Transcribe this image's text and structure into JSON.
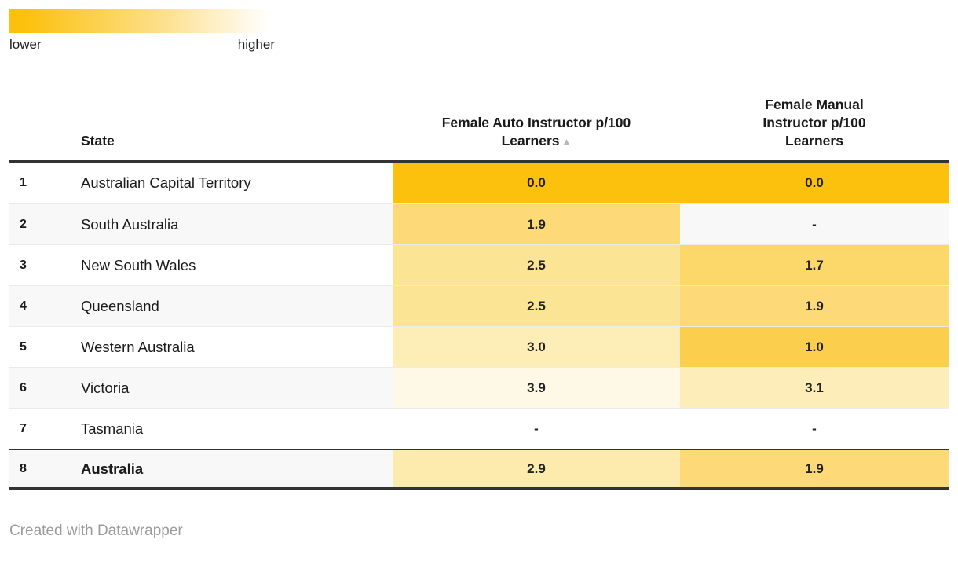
{
  "legend": {
    "lower_label": "lower",
    "higher_label": "higher",
    "gradient_start": "#FCC10D",
    "gradient_mid": "#FDDE85",
    "gradient_end": "#FFFFFF"
  },
  "table": {
    "header": {
      "state": "State",
      "auto": "Female Auto Instructor p/100 Learners",
      "manual": "Female Manual Instructor p/100 Learners",
      "sort_icon": "▲"
    },
    "rows": [
      {
        "rank": "1",
        "state": "Australian Capital Territory",
        "auto": "0.0",
        "manual": "0.0",
        "auto_color": "#FCC10D",
        "manual_color": "#FCC10D"
      },
      {
        "rank": "2",
        "state": "South Australia",
        "auto": "1.9",
        "manual": "-",
        "auto_color": "#FDDA77",
        "manual_color": null
      },
      {
        "rank": "3",
        "state": "New South Wales",
        "auto": "2.5",
        "manual": "1.7",
        "auto_color": "#FBE494",
        "manual_color": "#FCD76A"
      },
      {
        "rank": "4",
        "state": "Queensland",
        "auto": "2.5",
        "manual": "1.9",
        "auto_color": "#FBE494",
        "manual_color": "#FDDA77"
      },
      {
        "rank": "5",
        "state": "Western Australia",
        "auto": "3.0",
        "manual": "1.0",
        "auto_color": "#FDEDB6",
        "manual_color": "#FBCE4E"
      },
      {
        "rank": "6",
        "state": "Victoria",
        "auto": "3.9",
        "manual": "3.1",
        "auto_color": "#FEF8E6",
        "manual_color": "#FDEDB9"
      },
      {
        "rank": "7",
        "state": "Tasmania",
        "auto": "-",
        "manual": "-",
        "auto_color": null,
        "manual_color": null
      },
      {
        "rank": "8",
        "state": "Australia",
        "auto": "2.9",
        "manual": "1.9",
        "auto_color": "#FDEBAD",
        "manual_color": "#FDDA77"
      }
    ]
  },
  "footer": {
    "credit": "Created with Datawrapper"
  },
  "chart_data": {
    "type": "table",
    "title": "",
    "columns": [
      "State",
      "Female Auto Instructor p/100 Learners",
      "Female Manual Instructor p/100 Learners"
    ],
    "rows": [
      [
        "Australian Capital Territory",
        0.0,
        0.0
      ],
      [
        "South Australia",
        1.9,
        null
      ],
      [
        "New South Wales",
        2.5,
        1.7
      ],
      [
        "Queensland",
        2.5,
        1.9
      ],
      [
        "Western Australia",
        3.0,
        1.0
      ],
      [
        "Victoria",
        3.9,
        3.1
      ],
      [
        "Tasmania",
        null,
        null
      ],
      [
        "Australia",
        2.9,
        1.9
      ]
    ],
    "heatmap": {
      "lower_color": "#FCC10D",
      "higher_color": "#FFFFFF",
      "legend_labels": [
        "lower",
        "higher"
      ]
    },
    "sorted_by": "Female Auto Instructor p/100 Learners",
    "sort_direction": "ascending",
    "missing_value_marker": "-"
  }
}
